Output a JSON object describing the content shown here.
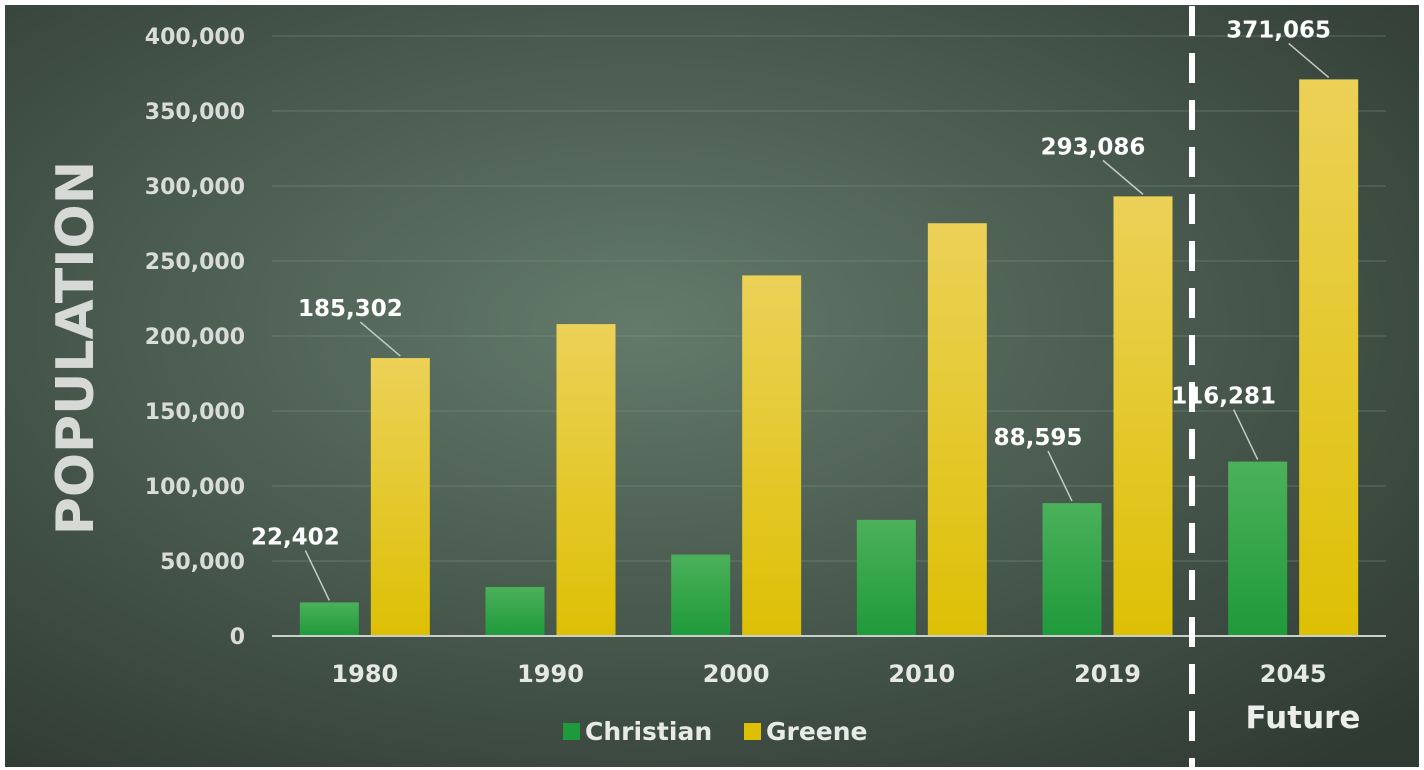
{
  "chart_data": {
    "type": "bar",
    "categories": [
      "1980",
      "1990",
      "2000",
      "2010",
      "2019",
      "2045"
    ],
    "series": [
      {
        "name": "Christian",
        "values": [
          22402,
          32644,
          54285,
          77422,
          88595,
          116281
        ]
      },
      {
        "name": "Greene",
        "values": [
          185302,
          207949,
          240391,
          275174,
          293086,
          371065
        ]
      }
    ],
    "data_labels": [
      {
        "category": "1980",
        "series": "Christian",
        "text": "22,402"
      },
      {
        "category": "1980",
        "series": "Greene",
        "text": "185,302"
      },
      {
        "category": "2019",
        "series": "Christian",
        "text": "88,595"
      },
      {
        "category": "2019",
        "series": "Greene",
        "text": "293,086"
      },
      {
        "category": "2045",
        "series": "Christian",
        "text": "116,281"
      },
      {
        "category": "2045",
        "series": "Greene",
        "text": "371,065"
      }
    ],
    "ylabel": "POPULATION",
    "xlabel": "",
    "ylim": [
      0,
      400000
    ],
    "yticks": [
      "0",
      "50,000",
      "100,000",
      "150,000",
      "200,000",
      "250,000",
      "300,000",
      "350,000",
      "400,000"
    ],
    "annotation": "Future",
    "grid": true,
    "legend_position": "bottom"
  },
  "colors": {
    "christian_top": "#4bb15a",
    "christian_bottom": "#1f9a3a",
    "greene_top": "#ecd158",
    "greene_bottom": "#ddc004",
    "background_center": "#637a6a",
    "background_edge": "#2f3a33"
  }
}
